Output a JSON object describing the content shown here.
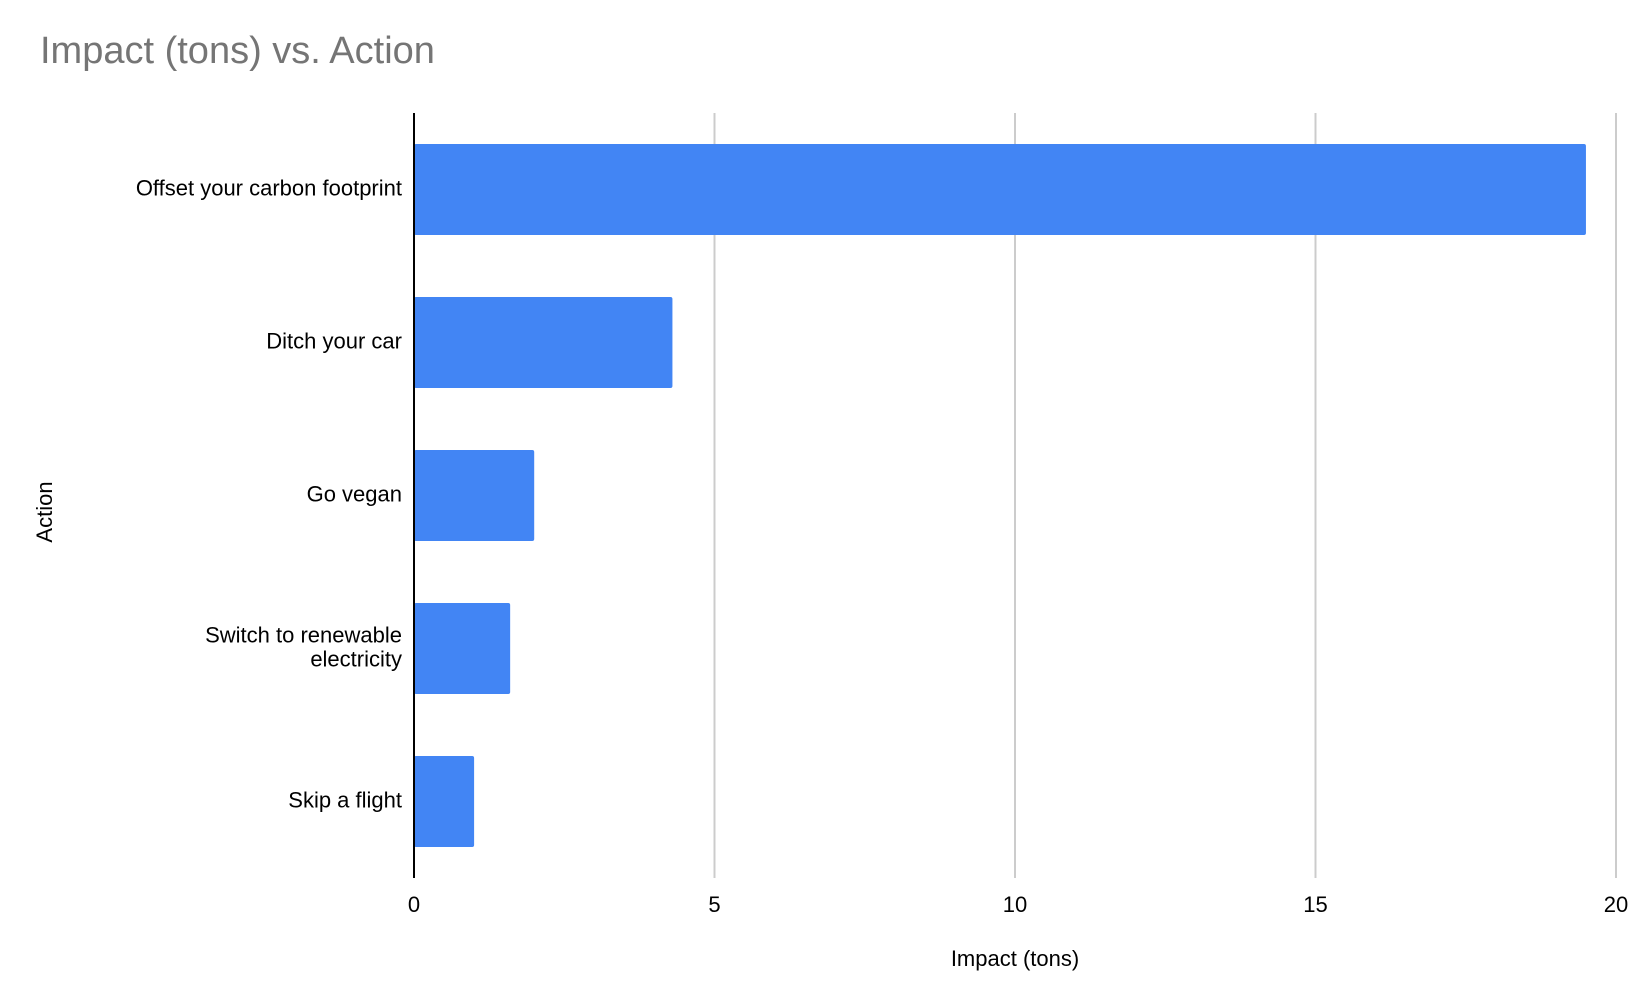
{
  "chart_data": {
    "type": "bar",
    "orientation": "horizontal",
    "title": "Impact (tons) vs. Action",
    "xlabel": "Impact (tons)",
    "ylabel": "Action",
    "categories": [
      "Offset your carbon footprint",
      "Ditch your car",
      "Go vegan",
      "Switch to renewable electricity",
      "Skip a flight"
    ],
    "category_lines": [
      [
        "Offset your carbon footprint"
      ],
      [
        "Ditch your car"
      ],
      [
        "Go vegan"
      ],
      [
        "Switch to renewable",
        "electricity"
      ],
      [
        "Skip a flight"
      ]
    ],
    "values": [
      19.5,
      4.3,
      2.0,
      1.6,
      1.0
    ],
    "xlim": [
      0,
      20
    ],
    "xticks": [
      0,
      5,
      10,
      15,
      20
    ],
    "xtick_labels": [
      "0",
      "5",
      "10",
      "15",
      "20"
    ],
    "grid": true,
    "legend": "none",
    "colors": {
      "bar": "#4285f4",
      "grid": "#cccccc",
      "axis": "#000000",
      "title": "#757575"
    }
  }
}
